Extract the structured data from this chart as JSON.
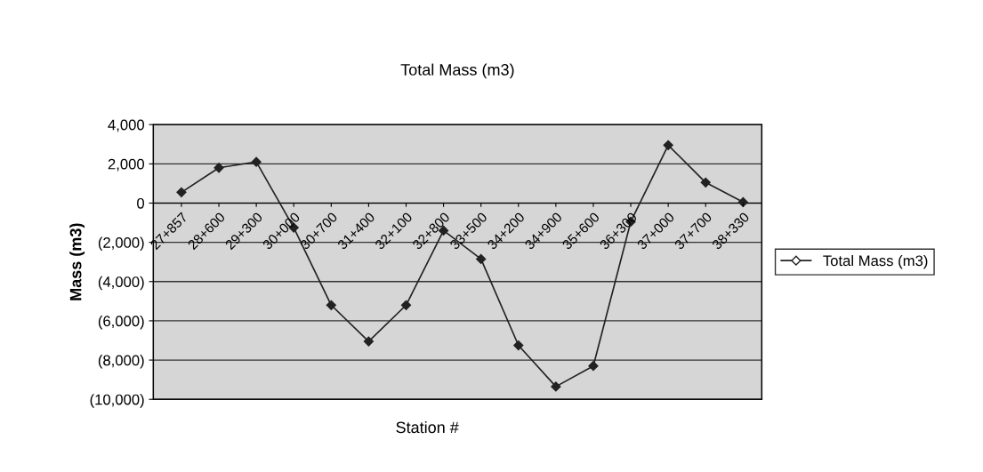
{
  "chart_data": {
    "type": "line",
    "title": "Total Mass (m3)",
    "xlabel": "Station #",
    "ylabel": "Mass (m3)",
    "categories": [
      "27+857",
      "28+600",
      "29+300",
      "30+000",
      "30+700",
      "31+400",
      "32+100",
      "32+800",
      "33+500",
      "34+200",
      "34+900",
      "35+600",
      "36+300",
      "37+000",
      "37+700",
      "38+330"
    ],
    "series": [
      {
        "name": "Total Mass (m3)",
        "color": "#222222",
        "values": [
          550,
          1800,
          2100,
          -1250,
          -5200,
          -7050,
          -5200,
          -1400,
          -2850,
          -7250,
          -9350,
          -8300,
          -950,
          2950,
          1050,
          50
        ]
      }
    ],
    "ylim": [
      -10000,
      4000
    ],
    "yticks": [
      {
        "value": -10000,
        "label": "(10,000)"
      },
      {
        "value": -8000,
        "label": "(8,000)"
      },
      {
        "value": -6000,
        "label": "(6,000)"
      },
      {
        "value": -4000,
        "label": "(4,000)"
      },
      {
        "value": -2000,
        "label": "(2,000)"
      },
      0,
      {
        "value": 2000,
        "label": "2,000"
      },
      {
        "value": 4000,
        "label": "4,000"
      }
    ],
    "grid": "y",
    "legend": "right",
    "marker": "diamond",
    "line_style": "solid"
  }
}
